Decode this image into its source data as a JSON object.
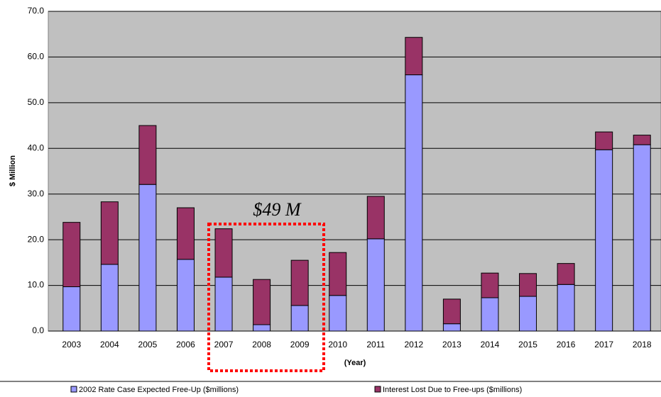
{
  "chart_data": {
    "type": "stacked_bar",
    "y_label": "$ Million",
    "x_label": "(Year)",
    "annotation": "$49 M",
    "categories": [
      "2003",
      "2004",
      "2005",
      "2006",
      "2007",
      "2008",
      "2009",
      "2010",
      "2011",
      "2012",
      "2013",
      "2014",
      "2015",
      "2016",
      "2017",
      "2018"
    ],
    "series": [
      {
        "name": "2002 Rate Case Expected Free-Up ($millions)",
        "color": "#9999ff",
        "values": [
          9.7,
          14.6,
          32.1,
          15.7,
          11.8,
          1.4,
          5.6,
          7.8,
          20.2,
          56.1,
          1.6,
          7.3,
          7.6,
          10.2,
          39.7,
          40.8
        ]
      },
      {
        "name": "Interest Lost Due to Free-ups ($millions)",
        "color": "#993366",
        "values": [
          14.1,
          13.7,
          12.9,
          11.3,
          10.6,
          9.9,
          9.9,
          9.4,
          9.3,
          8.2,
          5.4,
          5.4,
          5.0,
          4.6,
          3.9,
          2.1
        ]
      }
    ],
    "ylim": [
      0,
      70
    ],
    "yticks": [
      {
        "value": 0,
        "label": "0.0"
      },
      {
        "value": 10,
        "label": "10.0"
      },
      {
        "value": 20,
        "label": "20.0"
      },
      {
        "value": 30,
        "label": "30.0"
      },
      {
        "value": 40,
        "label": "40.0"
      },
      {
        "value": 50,
        "label": "50.0"
      },
      {
        "value": 60,
        "label": "60.0"
      },
      {
        "value": 70,
        "label": "70.0"
      }
    ],
    "grid": true,
    "background": "#c0c0c0"
  }
}
